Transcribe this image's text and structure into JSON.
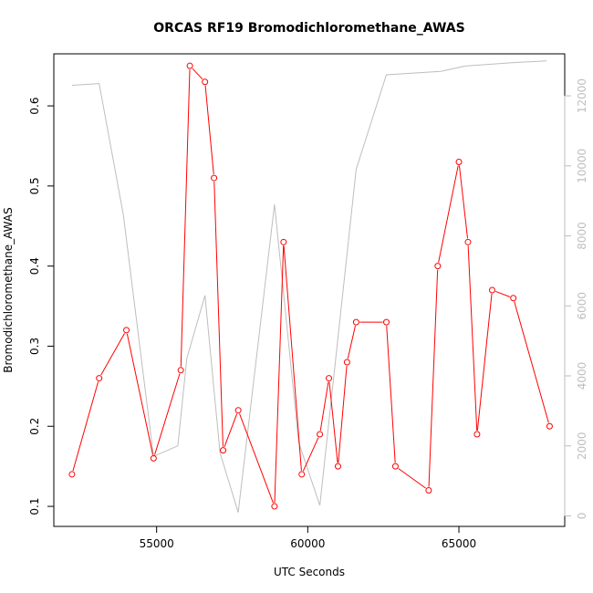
{
  "chart_data": {
    "type": "line",
    "title": "ORCAS RF19 Bromodichloromethane_AWAS",
    "xlabel": "UTC Seconds",
    "ylabel": "Bromodichloromethane_AWAS",
    "xlim": [
      51600,
      68500
    ],
    "ylim": [
      0.075,
      0.665
    ],
    "ylim_right": [
      -300,
      13200
    ],
    "x_ticks": [
      55000,
      60000,
      65000
    ],
    "y_ticks": [
      0.1,
      0.2,
      0.3,
      0.4,
      0.5,
      0.6
    ],
    "y_ticks_right": [
      0,
      2000,
      4000,
      6000,
      8000,
      10000,
      12000
    ],
    "grid": false,
    "series": [
      {
        "axis": "left",
        "color": "#ff0000",
        "markers": true,
        "x": [
          52200,
          53100,
          54000,
          54900,
          55800,
          56100,
          56600,
          56900,
          57200,
          57700,
          58900,
          59200,
          59800,
          60400,
          60700,
          61000,
          61300,
          61600,
          62600,
          62900,
          64000,
          64300,
          65000,
          65300,
          65600,
          66100,
          66800,
          68000
        ],
        "values": [
          0.14,
          0.26,
          0.32,
          0.16,
          0.27,
          0.65,
          0.63,
          0.51,
          0.17,
          0.22,
          0.1,
          0.43,
          0.14,
          0.19,
          0.26,
          0.15,
          0.28,
          0.33,
          0.33,
          0.15,
          0.12,
          0.4,
          0.53,
          0.43,
          0.19,
          0.37,
          0.36,
          0.2
        ]
      },
      {
        "axis": "right",
        "color": "#bebebe",
        "markers": false,
        "x": [
          52200,
          53100,
          53900,
          54900,
          55700,
          56000,
          56600,
          57100,
          57700,
          58900,
          59700,
          60400,
          61600,
          62600,
          64400,
          65200,
          66800,
          67900
        ],
        "values": [
          12300,
          12350,
          8600,
          1700,
          2000,
          4500,
          6300,
          1800,
          100,
          8900,
          2100,
          300,
          9900,
          12600,
          12700,
          12850,
          12950,
          13000
        ]
      }
    ]
  }
}
